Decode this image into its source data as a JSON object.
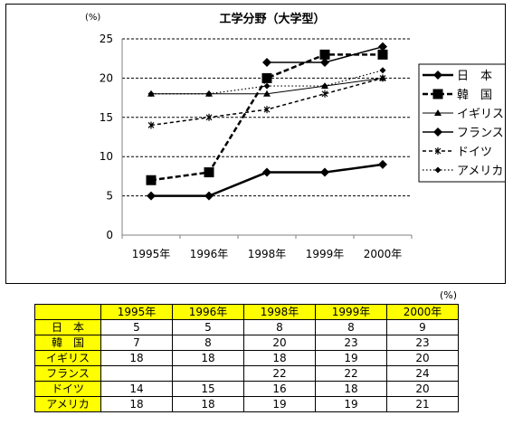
{
  "chart_data": {
    "type": "line",
    "title": "工学分野（大学型）",
    "unit": "(%)",
    "ylim": [
      0,
      25
    ],
    "yticks": [
      0,
      5,
      10,
      15,
      20,
      25
    ],
    "categories": [
      "1995年",
      "1996年",
      "1998年",
      "1999年",
      "2000年"
    ],
    "grid": "horizontal dashed",
    "legend_position": "right",
    "series": [
      {
        "name": "日　本",
        "values": [
          5,
          5,
          8,
          8,
          9
        ],
        "style": "bold solid",
        "marker": "diamond"
      },
      {
        "name": "韓　国",
        "values": [
          7,
          8,
          20,
          23,
          23
        ],
        "style": "bold dashed",
        "marker": "square"
      },
      {
        "name": "イギリス",
        "values": [
          18,
          18,
          18,
          19,
          20
        ],
        "style": "thin solid",
        "marker": "triangle"
      },
      {
        "name": "フランス",
        "values": [
          null,
          null,
          22,
          22,
          24
        ],
        "style": "solid",
        "marker": "diamond"
      },
      {
        "name": "ドイツ",
        "values": [
          14,
          15,
          16,
          18,
          20
        ],
        "style": "dashed",
        "marker": "star"
      },
      {
        "name": "アメリカ",
        "values": [
          18,
          18,
          19,
          19,
          21
        ],
        "style": "dotted",
        "marker": "small-diamond"
      }
    ]
  },
  "table": {
    "unit": "(%)",
    "headers": [
      "1995年",
      "1996年",
      "1998年",
      "1999年",
      "2000年"
    ],
    "rows": [
      {
        "label": "日　本",
        "values": [
          "5",
          "5",
          "8",
          "8",
          "9"
        ]
      },
      {
        "label": "韓　国",
        "values": [
          "7",
          "8",
          "20",
          "23",
          "23"
        ]
      },
      {
        "label": "イギリス",
        "values": [
          "18",
          "18",
          "18",
          "19",
          "20"
        ]
      },
      {
        "label": "フランス",
        "values": [
          "",
          "",
          "22",
          "22",
          "24"
        ]
      },
      {
        "label": "ドイツ",
        "values": [
          "14",
          "15",
          "16",
          "18",
          "20"
        ]
      },
      {
        "label": "アメリカ",
        "values": [
          "18",
          "18",
          "19",
          "19",
          "21"
        ]
      }
    ]
  }
}
